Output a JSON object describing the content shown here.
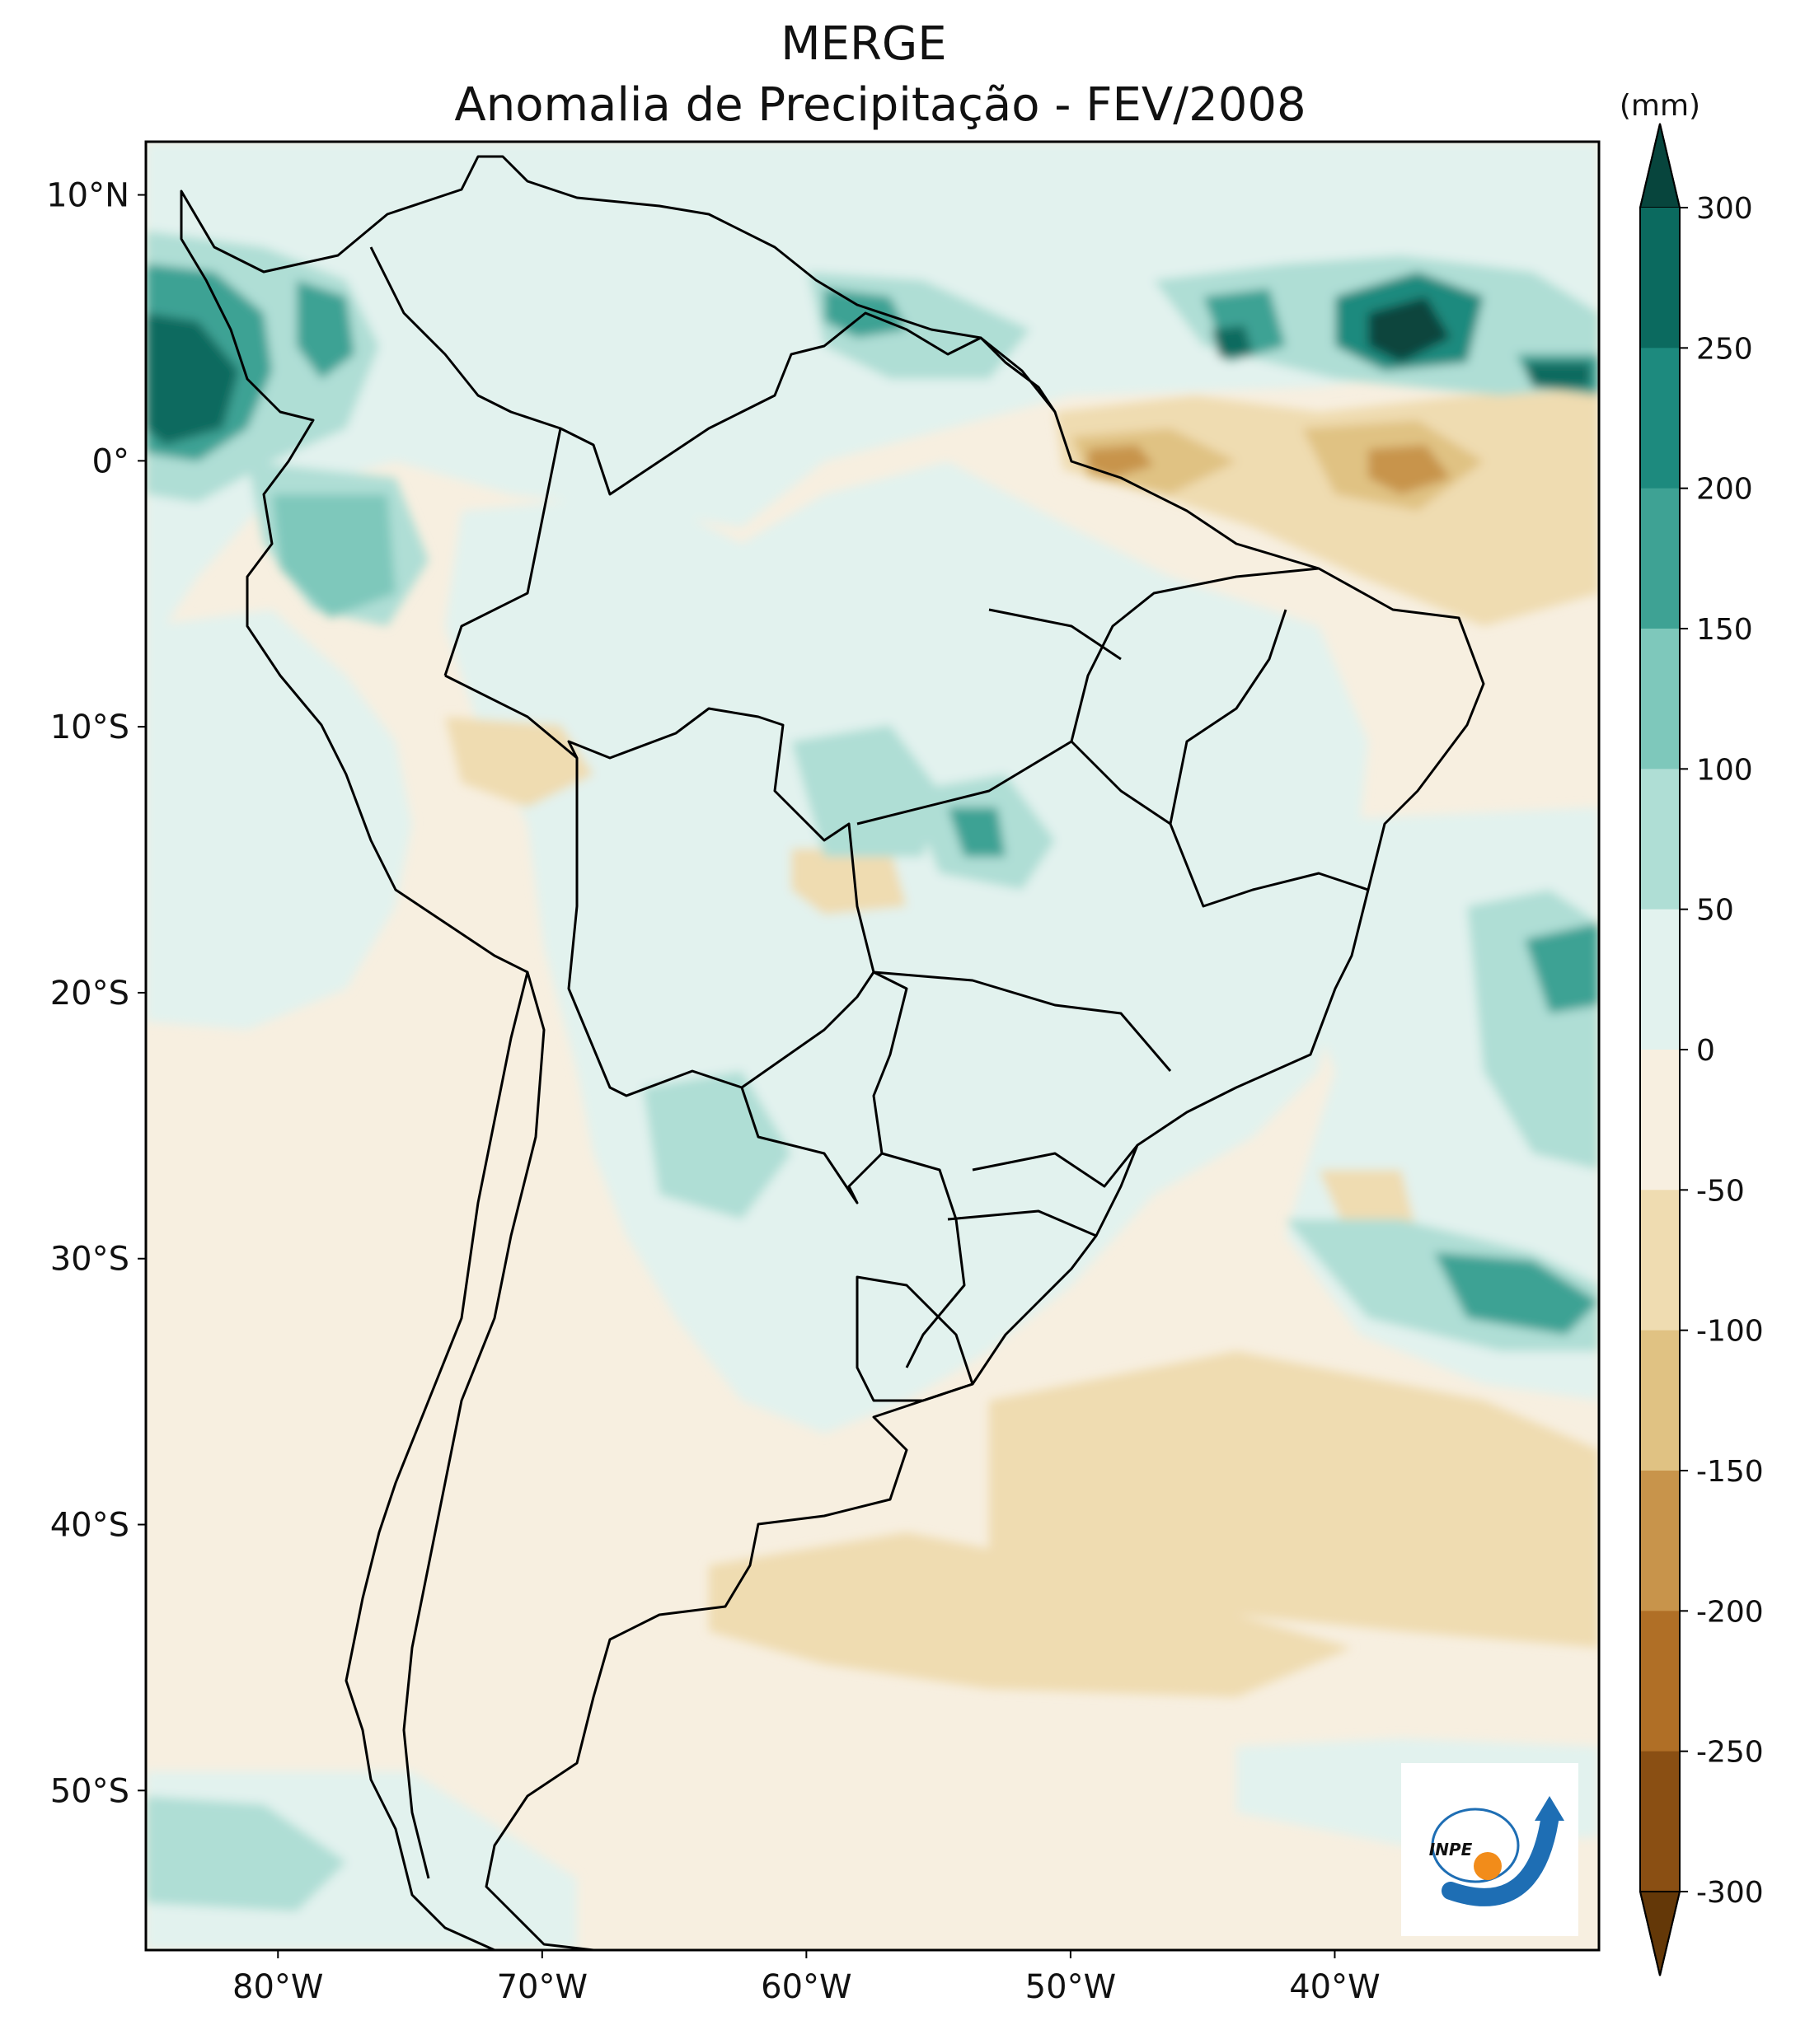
{
  "title": "MERGE",
  "subtitle": "Anomalia de Precipitação - FEV/2008",
  "colorbar": {
    "unit": "(mm)",
    "ticks": [
      "300",
      "250",
      "200",
      "150",
      "100",
      "50",
      "0",
      "-50",
      "-100",
      "-150",
      "-200",
      "-250",
      "-300"
    ],
    "colors": [
      "#07453d",
      "#0b6a5f",
      "#1d8a7e",
      "#3ea294",
      "#7ec8bb",
      "#afded5",
      "#e2f2ee",
      "#f7efe0",
      "#efdcb1",
      "#e0c283",
      "#c8944b",
      "#b06f26",
      "#8a4f13",
      "#643808"
    ],
    "extend": "both"
  },
  "map": {
    "lon_range": [
      -85,
      -30
    ],
    "lat_range": [
      -56,
      12
    ],
    "lon_ticks": [
      "80°W",
      "70°W",
      "60°W",
      "50°W",
      "40°W"
    ],
    "lat_ticks": [
      "10°N",
      "0°",
      "10°S",
      "20°S",
      "30°S",
      "40°S",
      "50°S"
    ],
    "background_color": "#f7efe0"
  },
  "logo": {
    "text": "INPE"
  }
}
